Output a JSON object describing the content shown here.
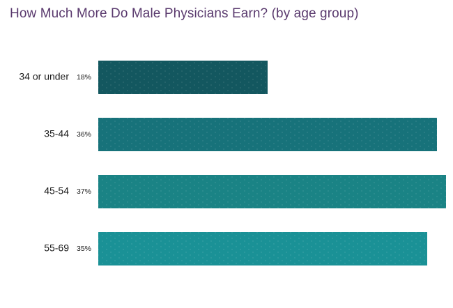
{
  "chart_data": {
    "type": "bar",
    "orientation": "horizontal",
    "title": "How Much More Do Male Physicians Earn? (by age group)",
    "categories": [
      "34 or under",
      "35-44",
      "45-54",
      "55-69"
    ],
    "values": [
      18,
      36,
      37,
      35
    ],
    "value_labels": [
      "18%",
      "36%",
      "37%",
      "35%"
    ],
    "unit": "%",
    "xlim": [
      0,
      37
    ],
    "grid": false,
    "legend": "none",
    "colors": [
      "#13575f",
      "#17727a",
      "#1a8385",
      "#1a9196"
    ],
    "title_color": "#5a3a6e"
  }
}
